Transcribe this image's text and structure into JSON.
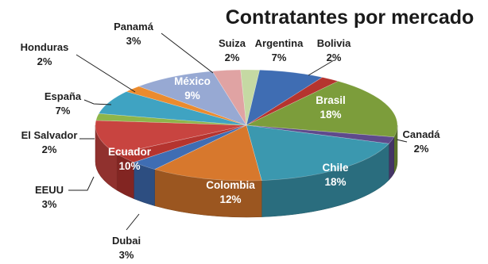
{
  "chart_data": {
    "type": "pie",
    "title": "Contratantes por mercado",
    "slices": [
      {
        "label": "Argentina",
        "value": 7,
        "value_label": "7%",
        "color": "#3F6DB3"
      },
      {
        "label": "Bolivia",
        "value": 2,
        "value_label": "2%",
        "color": "#B5342F"
      },
      {
        "label": "Brasil",
        "value": 18,
        "value_label": "18%",
        "color": "#7C9D3B"
      },
      {
        "label": "Canadá",
        "value": 2,
        "value_label": "2%",
        "color": "#5E4A8C"
      },
      {
        "label": "Chile",
        "value": 18,
        "value_label": "18%",
        "color": "#3B98AF"
      },
      {
        "label": "Colombia",
        "value": 12,
        "value_label": "12%",
        "color": "#D7782D"
      },
      {
        "label": "Dubai",
        "value": 3,
        "value_label": "3%",
        "color": "#3F6DB3"
      },
      {
        "label": "EEUU",
        "value": 3,
        "value_label": "3%",
        "color": "#B5342F"
      },
      {
        "label": "Ecuador",
        "value": 10,
        "value_label": "10%",
        "color": "#C84440"
      },
      {
        "label": "El Salvador",
        "value": 2,
        "value_label": "2%",
        "color": "#8EB54A"
      },
      {
        "label": "España",
        "value": 7,
        "value_label": "7%",
        "color": "#3FA3C2"
      },
      {
        "label": "Honduras",
        "value": 2,
        "value_label": "2%",
        "color": "#EB8B2E"
      },
      {
        "label": "México",
        "value": 9,
        "value_label": "9%",
        "color": "#97A9D3"
      },
      {
        "label": "Panamá",
        "value": 3,
        "value_label": "3%",
        "color": "#E0A3A3"
      },
      {
        "label": "Suiza",
        "value": 2,
        "value_label": "2%",
        "color": "#C5D9A3"
      }
    ],
    "legend": "none",
    "style": "3d-pie"
  }
}
